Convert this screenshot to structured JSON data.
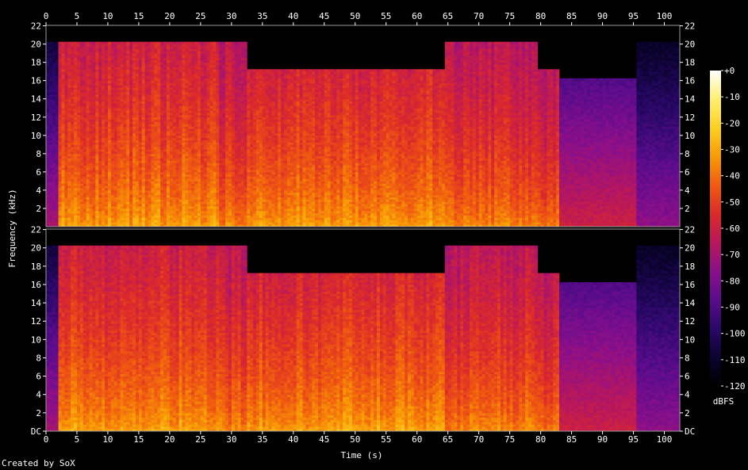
{
  "chart_data": {
    "type": "heatmap",
    "title": "",
    "xlabel": "Time (s)",
    "ylabel": "Frequency (kHz)",
    "xlim": [
      0,
      102.5
    ],
    "ylim": [
      0,
      22.05
    ],
    "x_ticks": [
      0,
      5,
      10,
      15,
      20,
      25,
      30,
      35,
      40,
      45,
      50,
      55,
      60,
      65,
      70,
      75,
      80,
      85,
      90,
      95,
      100
    ],
    "y_ticks": [
      {
        "value": 0,
        "label": "DC"
      },
      {
        "value": 2,
        "label": "2"
      },
      {
        "value": 4,
        "label": "4"
      },
      {
        "value": 6,
        "label": "6"
      },
      {
        "value": 8,
        "label": "8"
      },
      {
        "value": 10,
        "label": "10"
      },
      {
        "value": 12,
        "label": "12"
      },
      {
        "value": 14,
        "label": "14"
      },
      {
        "value": 16,
        "label": "16"
      },
      {
        "value": 18,
        "label": "18"
      },
      {
        "value": 20,
        "label": "20"
      },
      {
        "value": 22,
        "label": "22"
      }
    ],
    "channels": 2,
    "colorbar": {
      "label": "dBFS",
      "range": [
        -120,
        0
      ],
      "ticks": [
        {
          "value": 0,
          "label": "+0"
        },
        {
          "value": -10,
          "label": "-10"
        },
        {
          "value": -20,
          "label": "-20"
        },
        {
          "value": -30,
          "label": "-30"
        },
        {
          "value": -40,
          "label": "-40"
        },
        {
          "value": -50,
          "label": "-50"
        },
        {
          "value": -60,
          "label": "-60"
        },
        {
          "value": -70,
          "label": "-70"
        },
        {
          "value": -80,
          "label": "-80"
        },
        {
          "value": -90,
          "label": "-90"
        },
        {
          "value": -100,
          "label": "-100"
        },
        {
          "value": -110,
          "label": "-110"
        },
        {
          "value": -120,
          "label": "-120"
        }
      ],
      "colors": [
        "#000000",
        "#0b0330",
        "#2a0868",
        "#5a0c8c",
        "#8a0f8a",
        "#b8175c",
        "#dc2a2a",
        "#f05a10",
        "#f89a05",
        "#fcd020",
        "#fff070",
        "#ffffff"
      ]
    },
    "segments": [
      {
        "t_start": 0,
        "t_end": 1.6,
        "hf_cutoff_khz": 20,
        "level_dbfs": -100
      },
      {
        "t_start": 1.6,
        "t_end": 28,
        "hf_cutoff_khz": 20,
        "level_dbfs": -50
      },
      {
        "t_start": 28,
        "t_end": 32.5,
        "hf_cutoff_khz": 20,
        "level_dbfs": -55
      },
      {
        "t_start": 32.5,
        "t_end": 64.5,
        "hf_cutoff_khz": 17,
        "level_dbfs": -50
      },
      {
        "t_start": 64.5,
        "t_end": 79.5,
        "hf_cutoff_khz": 20,
        "level_dbfs": -55
      },
      {
        "t_start": 79.5,
        "t_end": 83,
        "hf_cutoff_khz": 17,
        "level_dbfs": -58
      },
      {
        "t_start": 83,
        "t_end": 95.5,
        "hf_cutoff_khz": 16,
        "level_dbfs": -90
      },
      {
        "t_start": 95.5,
        "t_end": 102.5,
        "hf_cutoff_khz": 20,
        "level_dbfs": -105
      }
    ]
  },
  "credit": "Created by SoX"
}
